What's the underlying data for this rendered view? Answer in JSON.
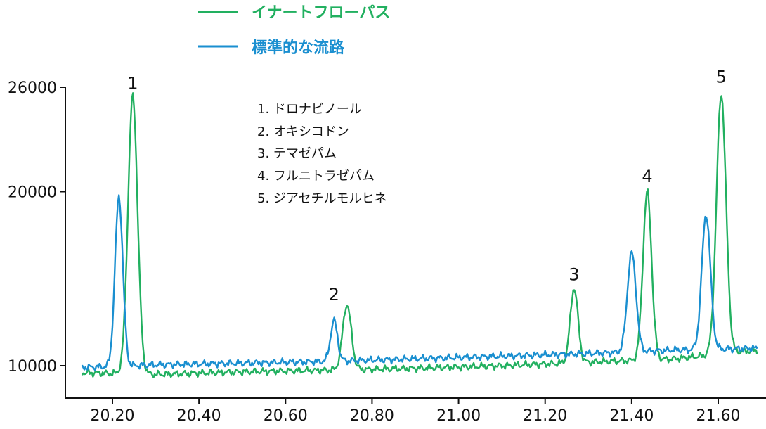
{
  "legend": {
    "placement": "top-left",
    "items": [
      {
        "name": "イナートフローパス",
        "color": "#22b060"
      },
      {
        "name": "標準的な流路",
        "color": "#1a8fd0"
      }
    ]
  },
  "compound_list": [
    "1. ドロナビノール",
    "2. オキシコドン",
    "3. テマゼパム",
    "4. フルニトラゼパム",
    "5. ジアセチルモルヒネ"
  ],
  "chart_data": {
    "type": "line",
    "title": "",
    "xlabel": "",
    "ylabel": "",
    "xlim": [
      20.13,
      21.69
    ],
    "ylim": [
      9200,
      26000
    ],
    "x_ticks": [
      20.2,
      20.4,
      20.6,
      20.8,
      21.0,
      21.2,
      21.4,
      21.6
    ],
    "x_tick_labels": [
      "20.20",
      "20.40",
      "20.60",
      "20.80",
      "21.00",
      "21.20",
      "21.40",
      "21.60"
    ],
    "y_ticks": [
      10000,
      20000,
      26000
    ],
    "y_tick_labels": [
      "10000",
      "20000",
      "26000"
    ],
    "grid": false,
    "series": [
      {
        "name": "イナートフローパス",
        "color": "#22b060",
        "baseline": [
          [
            20.13,
            9600
          ],
          [
            20.3,
            9500
          ],
          [
            20.5,
            9650
          ],
          [
            20.7,
            9750
          ],
          [
            20.9,
            9850
          ],
          [
            21.1,
            10000
          ],
          [
            21.3,
            10200
          ],
          [
            21.5,
            10400
          ],
          [
            21.69,
            10900
          ]
        ],
        "peaks": [
          {
            "label": "1",
            "x": 20.247,
            "y": 25500,
            "width": 0.011
          },
          {
            "label": "2",
            "x": 20.742,
            "y": 13500,
            "width": 0.01
          },
          {
            "label": "3",
            "x": 21.267,
            "y": 14450,
            "width": 0.009
          },
          {
            "label": "4",
            "x": 21.436,
            "y": 20000,
            "width": 0.01
          },
          {
            "label": "5",
            "x": 21.607,
            "y": 25600,
            "width": 0.011
          }
        ]
      },
      {
        "name": "標準的な流路",
        "color": "#1a8fd0",
        "baseline": [
          [
            20.13,
            9900
          ],
          [
            20.3,
            10050
          ],
          [
            20.5,
            10150
          ],
          [
            20.7,
            10250
          ],
          [
            20.9,
            10400
          ],
          [
            21.1,
            10550
          ],
          [
            21.3,
            10700
          ],
          [
            21.5,
            10900
          ],
          [
            21.69,
            11000
          ]
        ],
        "peaks": [
          {
            "x": 20.215,
            "y": 19700,
            "width": 0.009
          },
          {
            "x": 20.712,
            "y": 12600,
            "width": 0.008
          },
          {
            "x": 21.4,
            "y": 16500,
            "width": 0.01
          },
          {
            "x": 21.572,
            "y": 18700,
            "width": 0.01
          }
        ]
      }
    ],
    "peak_labels": [
      {
        "label": "1",
        "x": 20.247,
        "y": 25500
      },
      {
        "label": "2",
        "x": 20.712,
        "y": 13350
      },
      {
        "label": "3",
        "x": 21.267,
        "y": 14500
      },
      {
        "label": "4",
        "x": 21.436,
        "y": 20150
      },
      {
        "label": "5",
        "x": 21.607,
        "y": 25850
      }
    ]
  }
}
